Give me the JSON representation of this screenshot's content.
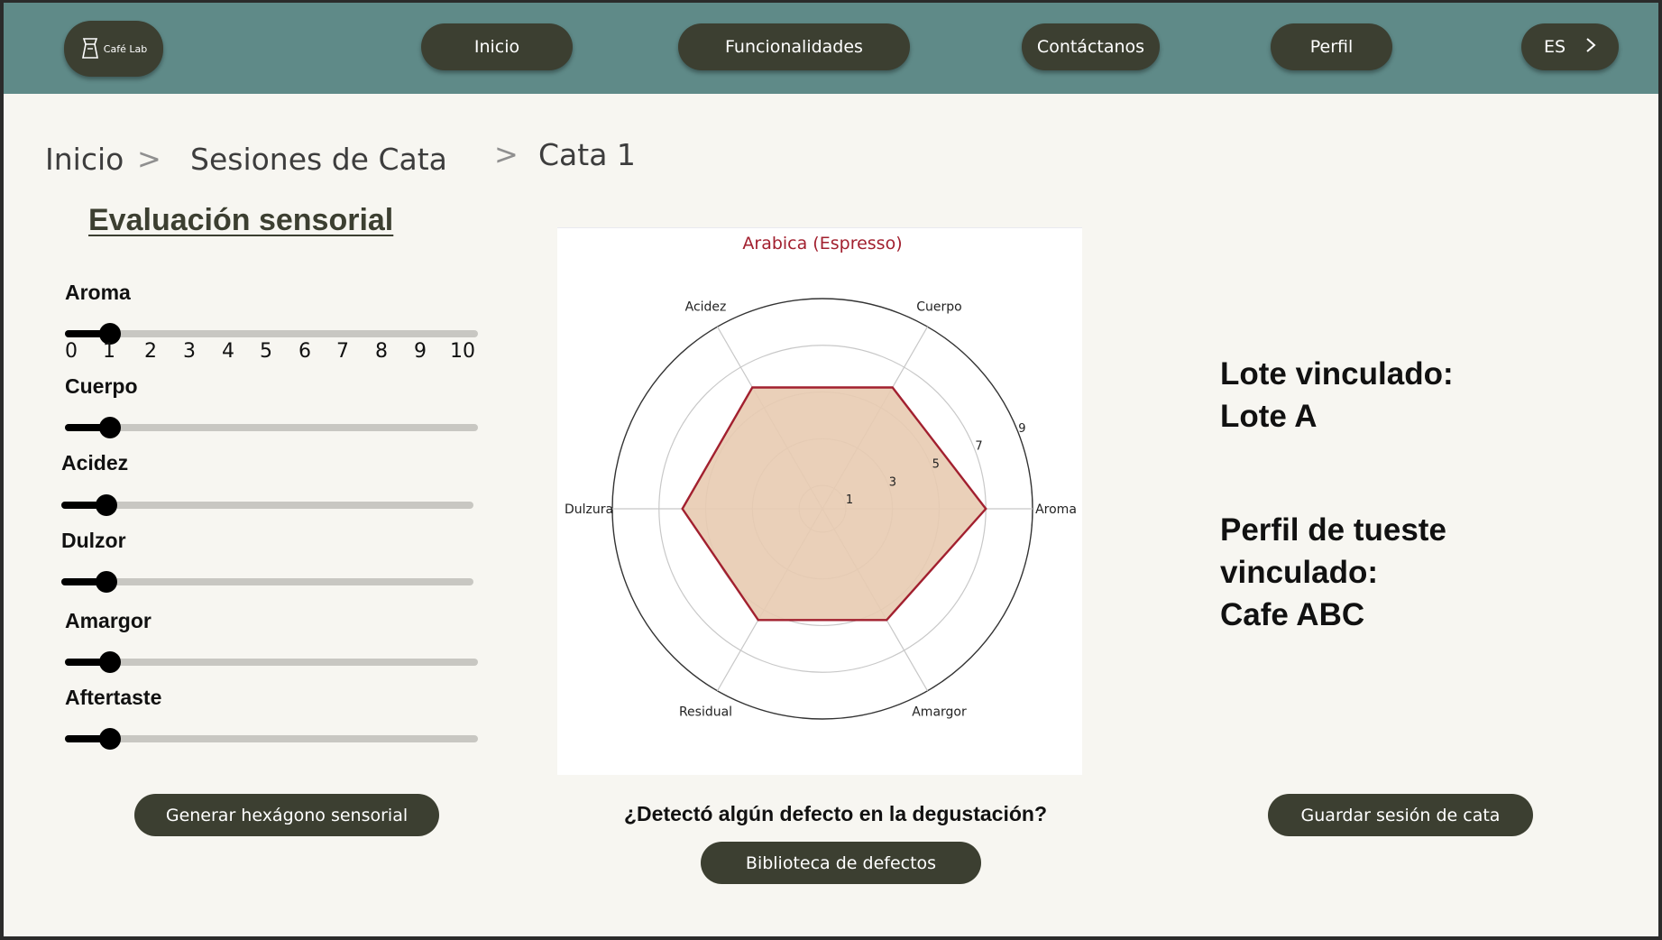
{
  "nav": {
    "logo_text": "Café Lab",
    "inicio": "Inicio",
    "funcionalidades": "Funcionalidades",
    "contactanos": "Contáctanos",
    "perfil": "Perfil",
    "language": "ES"
  },
  "breadcrumb": {
    "level1": "Inicio",
    "level2": "Sesiones de Cata",
    "level3": "Cata 1",
    "separator": ">"
  },
  "evaluation": {
    "title": "Evaluación sensorial",
    "scale_ticks": [
      "0",
      "1",
      "2",
      "3",
      "4",
      "5",
      "6",
      "7",
      "8",
      "9",
      "10"
    ],
    "sliders": [
      {
        "label": "Aroma",
        "value": 1
      },
      {
        "label": "Cuerpo",
        "value": 1
      },
      {
        "label": "Acidez",
        "value": 1
      },
      {
        "label": "Dulzor",
        "value": 1
      },
      {
        "label": "Amargor",
        "value": 1
      },
      {
        "label": "Aftertaste",
        "value": 1
      }
    ]
  },
  "chart_data": {
    "type": "radar",
    "title": "Arabica (Espresso)",
    "axes": [
      "Aroma",
      "Cuerpo",
      "Acidez",
      "Dulzura",
      "Residual",
      "Amargor"
    ],
    "values": [
      7,
      6,
      6,
      6,
      5.5,
      5.5
    ],
    "rlim": [
      0,
      9
    ],
    "rticks": [
      "1",
      "3",
      "5",
      "7",
      "9"
    ],
    "line_color": "#a2202f",
    "fill_color": "#e8cbb1",
    "grid": true
  },
  "linked": {
    "lote_label": "Lote vinculado:",
    "lote_value": "Lote A",
    "perfil_label_1": "Perfil de tueste",
    "perfil_label_2": "vinculado:",
    "perfil_value": "Cafe ABC"
  },
  "actions": {
    "generate": "Generar hexágono sensorial",
    "question": "¿Detectó algún defecto en la degustación?",
    "library": "Biblioteca de defectos",
    "save": "Guardar sesión de cata"
  }
}
